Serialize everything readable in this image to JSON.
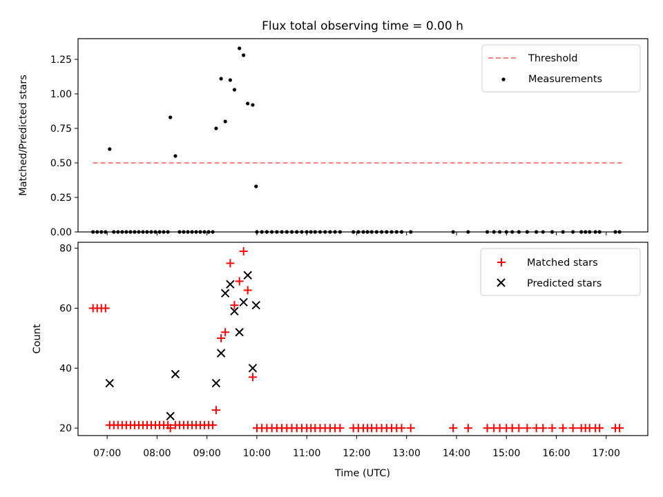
{
  "chart_data": [
    {
      "type": "scatter",
      "title": "Flux total observing time = 0.00 h",
      "xlabel": "",
      "ylabel": "Matched/Predicted stars",
      "xlim": [
        "06:25",
        "17:50"
      ],
      "ylim": [
        0,
        1.4
      ],
      "yticks": [
        "0.00",
        "0.25",
        "0.50",
        "0.75",
        "1.00",
        "1.25"
      ],
      "grid": false,
      "legend": {
        "position": "top-right",
        "entries": [
          "Threshold",
          "Measurements"
        ]
      },
      "threshold": {
        "name": "Threshold",
        "value": 0.5,
        "x_range": [
          "06:43",
          "17:20"
        ],
        "color": "#ff8080",
        "style": "dashed"
      },
      "series": [
        {
          "name": "Measurements",
          "color": "#000000",
          "marker": "dot",
          "points": [
            [
              "07:03",
              0.6
            ],
            [
              "08:16",
              0.83
            ],
            [
              "08:22",
              0.55
            ],
            [
              "09:11",
              0.75
            ],
            [
              "09:17",
              1.11
            ],
            [
              "09:22",
              0.8
            ],
            [
              "09:28",
              1.1
            ],
            [
              "09:33",
              1.03
            ],
            [
              "09:39",
              1.33
            ],
            [
              "09:44",
              1.28
            ],
            [
              "09:49",
              0.93
            ],
            [
              "09:55",
              0.92
            ],
            [
              "09:59",
              0.33
            ]
          ],
          "zero_times": [
            "06:43",
            "06:48",
            "06:53",
            "06:58",
            "07:08",
            "07:13",
            "07:18",
            "07:23",
            "07:28",
            "07:33",
            "07:38",
            "07:43",
            "07:48",
            "07:53",
            "07:58",
            "08:03",
            "08:08",
            "08:13",
            "08:27",
            "08:32",
            "08:37",
            "08:42",
            "08:47",
            "08:52",
            "08:57",
            "09:02",
            "09:07",
            "10:00",
            "10:06",
            "10:12",
            "10:18",
            "10:24",
            "10:30",
            "10:36",
            "10:42",
            "10:48",
            "10:54",
            "11:00",
            "11:05",
            "11:10",
            "11:16",
            "11:22",
            "11:28",
            "11:34",
            "11:40",
            "11:56",
            "12:02",
            "12:08",
            "12:13",
            "12:18",
            "12:24",
            "12:30",
            "12:36",
            "12:42",
            "12:48",
            "12:54",
            "13:05",
            "13:56",
            "14:14",
            "14:37",
            "14:45",
            "14:52",
            "15:00",
            "15:07",
            "15:15",
            "15:25",
            "15:36",
            "15:44",
            "15:55",
            "16:08",
            "16:20",
            "16:30",
            "16:35",
            "16:40",
            "16:47",
            "16:52",
            "17:11",
            "17:16"
          ]
        }
      ]
    },
    {
      "type": "scatter",
      "title": "",
      "xlabel": "Time (UTC)",
      "ylabel": "Count",
      "xlim": [
        "06:25",
        "17:50"
      ],
      "ylim": [
        17.5,
        82
      ],
      "yticks": [
        "20",
        "40",
        "60",
        "80"
      ],
      "xticks": [
        "07:00",
        "08:00",
        "09:00",
        "10:00",
        "11:00",
        "12:00",
        "13:00",
        "14:00",
        "15:00",
        "16:00",
        "17:00"
      ],
      "grid": false,
      "legend": {
        "position": "top-right",
        "entries": [
          "Matched stars",
          "Predicted stars"
        ]
      },
      "series": [
        {
          "name": "Matched stars",
          "color": "#ff0000",
          "marker": "plus",
          "points": [
            [
              "06:43",
              60
            ],
            [
              "06:48",
              60
            ],
            [
              "06:53",
              60
            ],
            [
              "06:58",
              60
            ],
            [
              "07:03",
              21
            ],
            [
              "07:08",
              21
            ],
            [
              "07:13",
              21
            ],
            [
              "07:18",
              21
            ],
            [
              "07:23",
              21
            ],
            [
              "07:28",
              21
            ],
            [
              "07:33",
              21
            ],
            [
              "07:38",
              21
            ],
            [
              "07:43",
              21
            ],
            [
              "07:48",
              21
            ],
            [
              "07:53",
              21
            ],
            [
              "07:58",
              21
            ],
            [
              "08:03",
              21
            ],
            [
              "08:08",
              21
            ],
            [
              "08:13",
              21
            ],
            [
              "08:16",
              20
            ],
            [
              "08:22",
              21
            ],
            [
              "08:27",
              21
            ],
            [
              "08:32",
              21
            ],
            [
              "08:37",
              21
            ],
            [
              "08:42",
              21
            ],
            [
              "08:47",
              21
            ],
            [
              "08:52",
              21
            ],
            [
              "08:57",
              21
            ],
            [
              "09:02",
              21
            ],
            [
              "09:07",
              21
            ],
            [
              "09:11",
              26
            ],
            [
              "09:17",
              50
            ],
            [
              "09:22",
              52
            ],
            [
              "09:28",
              75
            ],
            [
              "09:33",
              61
            ],
            [
              "09:39",
              69
            ],
            [
              "09:44",
              79
            ],
            [
              "09:49",
              66
            ],
            [
              "09:55",
              37
            ],
            [
              "10:00",
              20
            ],
            [
              "10:06",
              20
            ],
            [
              "10:12",
              20
            ],
            [
              "10:18",
              20
            ],
            [
              "10:24",
              20
            ],
            [
              "10:30",
              20
            ],
            [
              "10:36",
              20
            ],
            [
              "10:42",
              20
            ],
            [
              "10:48",
              20
            ],
            [
              "10:54",
              20
            ],
            [
              "11:00",
              20
            ],
            [
              "11:05",
              20
            ],
            [
              "11:10",
              20
            ],
            [
              "11:16",
              20
            ],
            [
              "11:22",
              20
            ],
            [
              "11:28",
              20
            ],
            [
              "11:34",
              20
            ],
            [
              "11:40",
              20
            ],
            [
              "11:56",
              20
            ],
            [
              "12:02",
              20
            ],
            [
              "12:08",
              20
            ],
            [
              "12:13",
              20
            ],
            [
              "12:18",
              20
            ],
            [
              "12:24",
              20
            ],
            [
              "12:30",
              20
            ],
            [
              "12:36",
              20
            ],
            [
              "12:42",
              20
            ],
            [
              "12:48",
              20
            ],
            [
              "12:54",
              20
            ],
            [
              "13:05",
              20
            ],
            [
              "13:56",
              20
            ],
            [
              "14:14",
              20
            ],
            [
              "14:37",
              20
            ],
            [
              "14:45",
              20
            ],
            [
              "14:52",
              20
            ],
            [
              "15:00",
              20
            ],
            [
              "15:07",
              20
            ],
            [
              "15:15",
              20
            ],
            [
              "15:25",
              20
            ],
            [
              "15:36",
              20
            ],
            [
              "15:44",
              20
            ],
            [
              "15:55",
              20
            ],
            [
              "16:08",
              20
            ],
            [
              "16:20",
              20
            ],
            [
              "16:30",
              20
            ],
            [
              "16:35",
              20
            ],
            [
              "16:40",
              20
            ],
            [
              "16:47",
              20
            ],
            [
              "16:52",
              20
            ],
            [
              "17:11",
              20
            ],
            [
              "17:16",
              20
            ]
          ]
        },
        {
          "name": "Predicted stars",
          "color": "#000000",
          "marker": "x",
          "points": [
            [
              "07:03",
              35
            ],
            [
              "08:16",
              24
            ],
            [
              "08:22",
              38
            ],
            [
              "09:11",
              35
            ],
            [
              "09:17",
              45
            ],
            [
              "09:22",
              65
            ],
            [
              "09:28",
              68
            ],
            [
              "09:33",
              59
            ],
            [
              "09:39",
              52
            ],
            [
              "09:44",
              62
            ],
            [
              "09:49",
              71
            ],
            [
              "09:55",
              40
            ],
            [
              "09:59",
              61
            ]
          ]
        }
      ]
    }
  ]
}
